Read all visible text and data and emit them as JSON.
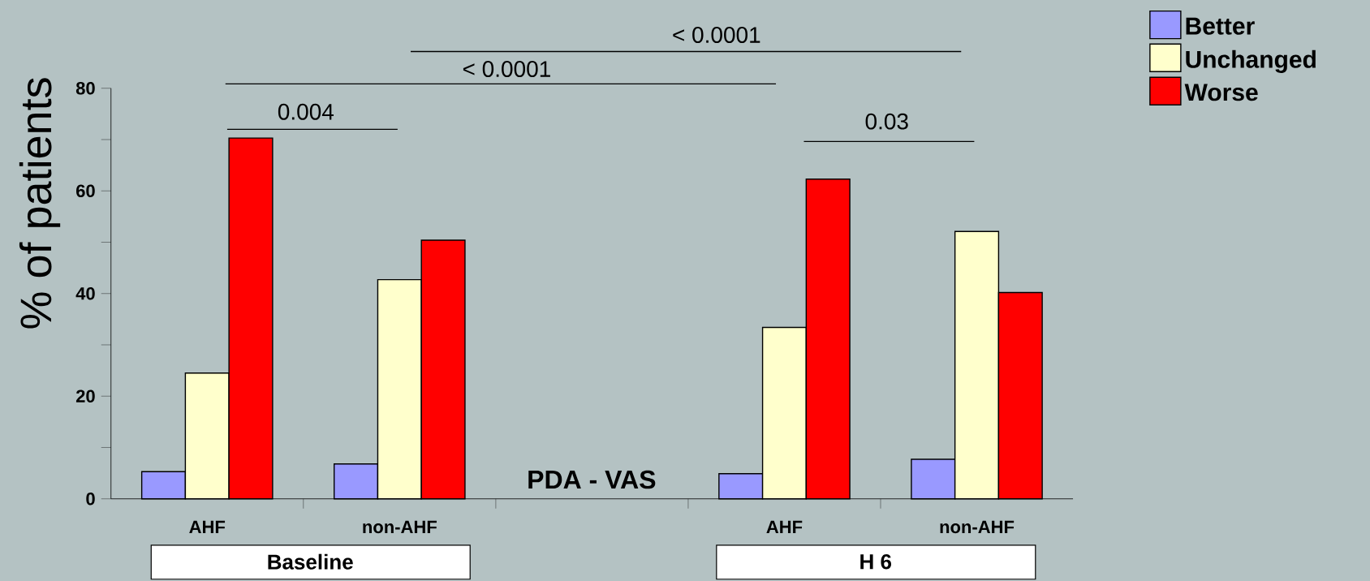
{
  "chart_data": {
    "type": "bar",
    "ylabel": "% of patients",
    "categories": [
      "AHF",
      "non-AHF",
      null,
      "AHF",
      "non-AHF"
    ],
    "series": [
      {
        "name": "Better",
        "color": "#9999ff",
        "values": [
          5.3,
          6.8,
          null,
          4.9,
          7.7
        ]
      },
      {
        "name": "Unchanged",
        "color": "#ffffcc",
        "values": [
          24.5,
          42.7,
          null,
          33.4,
          52.1
        ]
      },
      {
        "name": "Worse",
        "color": "#ff0000",
        "values": [
          70.3,
          50.4,
          null,
          62.3,
          40.2
        ]
      }
    ],
    "ylim": [
      0,
      80
    ],
    "yticks": [
      0,
      {
        "value": 10,
        "label": null
      },
      20,
      {
        "value": 30,
        "label": null
      },
      40,
      {
        "value": 50,
        "label": null
      },
      60,
      {
        "value": 70,
        "label": null
      },
      80
    ],
    "legend": "top right",
    "grid": false,
    "annotations": [
      "< 0.0001",
      "< 0.0001",
      "0.004",
      "0.03",
      "PDA - VAS",
      "Baseline",
      "H 6"
    ]
  }
}
